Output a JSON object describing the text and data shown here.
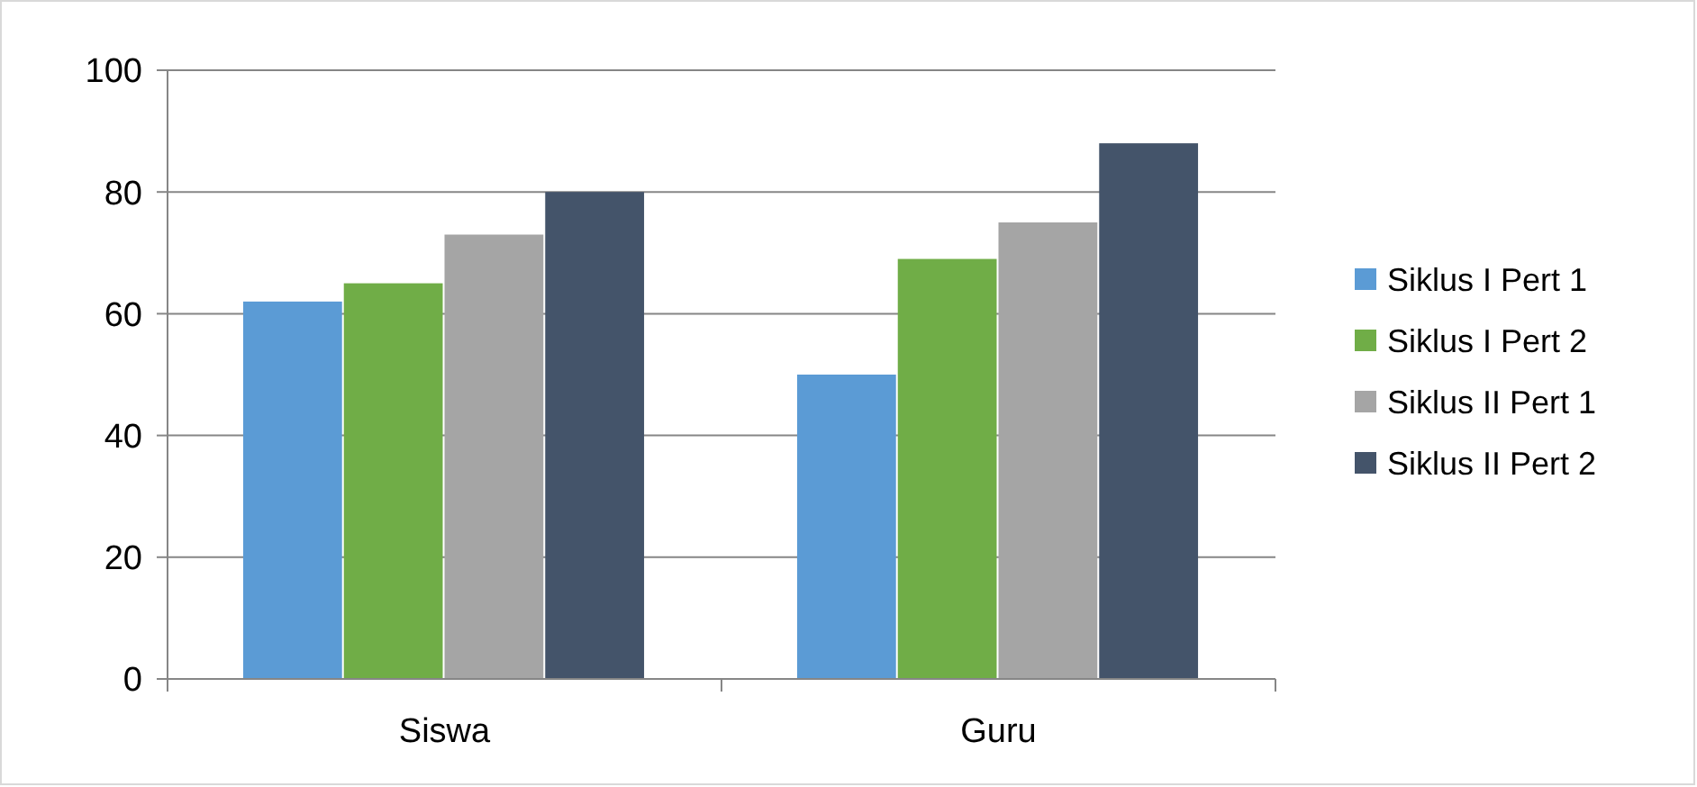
{
  "chart_data": {
    "type": "bar",
    "categories": [
      "Siswa",
      "Guru"
    ],
    "series": [
      {
        "name": "Siklus I Pert 1",
        "color": "#5b9bd5",
        "values": [
          62,
          50
        ]
      },
      {
        "name": "Siklus I Pert 2",
        "color": "#70ad47",
        "values": [
          65,
          69
        ]
      },
      {
        "name": "Siklus II Pert 1",
        "color": "#a5a5a5",
        "values": [
          73,
          75
        ]
      },
      {
        "name": "Siklus II Pert 2",
        "color": "#44546a",
        "values": [
          80,
          88
        ]
      }
    ],
    "ylim": [
      0,
      100
    ],
    "yticks": [
      0,
      20,
      40,
      60,
      80,
      100
    ],
    "grid": "y",
    "legend": "right"
  }
}
